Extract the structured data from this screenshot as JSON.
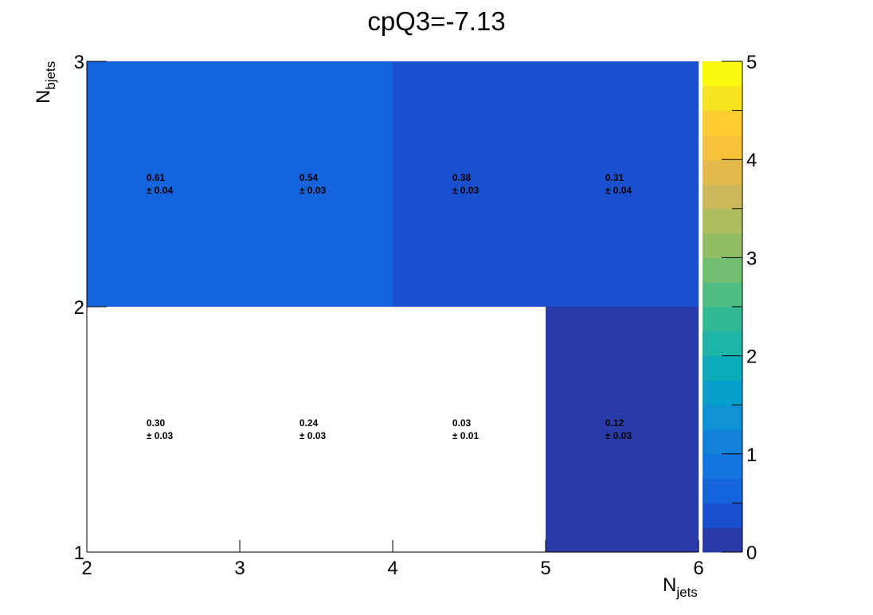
{
  "chart_data": {
    "type": "heatmap",
    "title": "cpQ3=-7.13",
    "xlabel": {
      "base": "N",
      "sub": "jets"
    },
    "ylabel": {
      "base": "N",
      "sub": "bjets"
    },
    "x_bins": [
      2,
      3,
      4,
      5,
      6
    ],
    "y_bins": [
      1,
      2,
      3
    ],
    "xlim": [
      2,
      6
    ],
    "ylim": [
      1,
      3
    ],
    "x_ticks": [
      "2",
      "3",
      "4",
      "5",
      "6"
    ],
    "y_ticks": [
      "1",
      "2",
      "3"
    ],
    "zlim": [
      0,
      5
    ],
    "z_ticks": [
      "0",
      "1",
      "2",
      "3",
      "4",
      "5"
    ],
    "colorbar_levels": 20,
    "palette": [
      "#283ba8",
      "#1a50cd",
      "#1564dd",
      "#1375e2",
      "#1282d9",
      "#0f92d6",
      "#05a1cb",
      "#08acbb",
      "#1cb5a7",
      "#33b993",
      "#52bd82",
      "#73bf72",
      "#94be66",
      "#b0bd5f",
      "#ccb95a",
      "#e3bb4a",
      "#f7c237",
      "#fdcd2d",
      "#f7e41f",
      "#f9fa10"
    ],
    "cells": [
      {
        "x": 2,
        "y": 1,
        "value": 0.3,
        "value_label": "0.30",
        "error_label": "± 0.03"
      },
      {
        "x": 3,
        "y": 1,
        "value": 0.24,
        "value_label": "0.24",
        "error_label": "± 0.03"
      },
      {
        "x": 4,
        "y": 1,
        "value": 0.03,
        "value_label": "0.03",
        "error_label": "± 0.01"
      },
      {
        "x": 5,
        "y": 1,
        "value": 0.12,
        "value_label": "0.12",
        "error_label": "± 0.03"
      },
      {
        "x": 2,
        "y": 2,
        "value": 0.61,
        "value_label": "0.61",
        "error_label": "± 0.04"
      },
      {
        "x": 3,
        "y": 2,
        "value": 0.54,
        "value_label": "0.54",
        "error_label": "± 0.03"
      },
      {
        "x": 4,
        "y": 2,
        "value": 0.38,
        "value_label": "0.38",
        "error_label": "± 0.03"
      },
      {
        "x": 5,
        "y": 2,
        "value": 0.31,
        "value_label": "0.31",
        "error_label": "± 0.04"
      }
    ],
    "cell_fill_colors": {
      "2,1": "#ffffff",
      "3,1": "#ffffff",
      "4,1": "#ffffff",
      "5,1": "#283ba8",
      "2,2": "#1564dd",
      "3,2": "#1564dd",
      "4,2": "#1a50cd",
      "5,2": "#1a50cd"
    },
    "grid": false
  }
}
